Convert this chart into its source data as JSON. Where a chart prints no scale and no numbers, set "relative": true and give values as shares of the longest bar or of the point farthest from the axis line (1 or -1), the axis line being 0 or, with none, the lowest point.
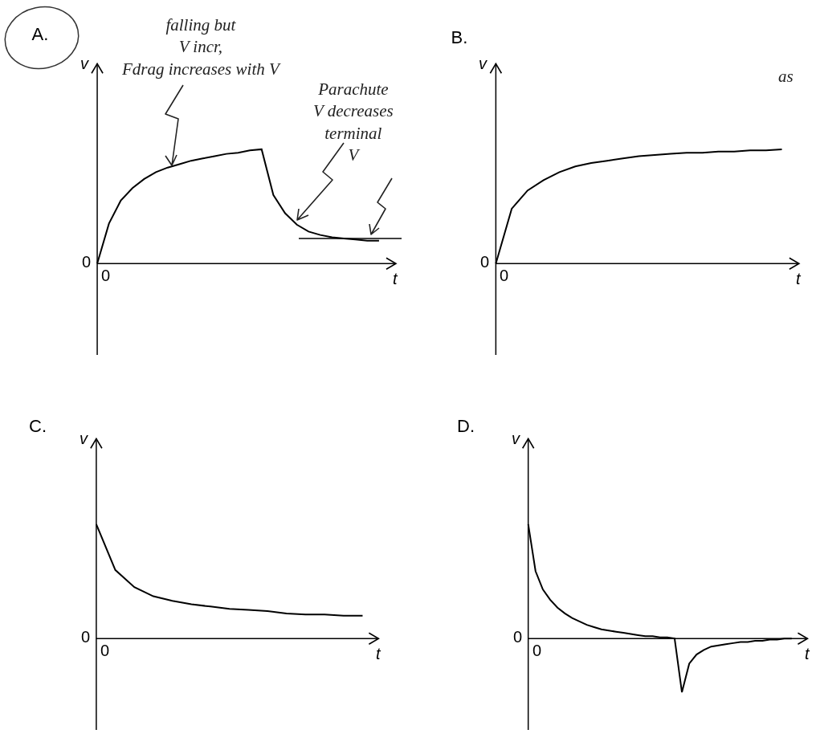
{
  "chart_data": [
    {
      "type": "line",
      "title": "A.",
      "xlabel": "t",
      "ylabel": "v",
      "relative": true,
      "categories": [
        null,
        null,
        null,
        null,
        null,
        null,
        null,
        null,
        null,
        null,
        null,
        null,
        null,
        null,
        null,
        null,
        null,
        null,
        null,
        null,
        null,
        null,
        null,
        null,
        null
      ],
      "color": "#000000",
      "values": [
        0,
        0.35,
        0.55,
        0.66,
        0.74,
        0.8,
        0.84,
        0.87,
        0.9,
        0.92,
        0.94,
        0.96,
        0.97,
        0.99,
        1.0,
        0.6,
        0.44,
        0.34,
        0.28,
        0.25,
        0.23,
        0.22,
        0.21,
        0.2,
        0.2
      ],
      "ref_lines": [
        {
          "axis": "y",
          "value": 0.22,
          "color": "#000000"
        }
      ],
      "annotations": [
        "0",
        "0",
        "falling but\nV incr,\nFdrag increases with V",
        "Parachute\nV decreases\nterminal\nV"
      ]
    },
    {
      "type": "line",
      "title": "B.",
      "xlabel": "t",
      "ylabel": "v",
      "relative": true,
      "categories": [
        null,
        null,
        null,
        null,
        null,
        null,
        null,
        null,
        null,
        null,
        null,
        null,
        null,
        null,
        null,
        null,
        null,
        null,
        null
      ],
      "color": "#000000",
      "values": [
        0,
        0.48,
        0.64,
        0.73,
        0.8,
        0.85,
        0.88,
        0.9,
        0.92,
        0.94,
        0.95,
        0.96,
        0.97,
        0.97,
        0.98,
        0.98,
        0.99,
        0.99,
        1.0
      ],
      "annotations": [
        "0",
        "0",
        "as"
      ]
    },
    {
      "type": "line",
      "title": "C.",
      "xlabel": "t",
      "ylabel": "v",
      "relative": true,
      "categories": [
        null,
        null,
        null,
        null,
        null,
        null,
        null,
        null,
        null,
        null,
        null,
        null,
        null,
        null,
        null
      ],
      "color": "#000000",
      "values": [
        1.0,
        0.6,
        0.45,
        0.37,
        0.33,
        0.3,
        0.28,
        0.26,
        0.25,
        0.24,
        0.22,
        0.21,
        0.21,
        0.2,
        0.2
      ],
      "annotations": [
        "0",
        "0"
      ]
    },
    {
      "type": "line",
      "title": "D.",
      "xlabel": "t",
      "ylabel": "v",
      "relative": true,
      "categories": [
        null,
        null,
        null,
        null,
        null,
        null,
        null,
        null,
        null,
        null,
        null,
        null,
        null,
        null,
        null,
        null,
        null,
        null,
        null,
        null,
        null,
        null,
        null,
        null,
        null,
        null,
        null,
        null,
        null,
        null,
        null,
        null,
        null,
        null,
        null,
        null,
        null
      ],
      "color": "#000000",
      "values": [
        1.0,
        0.59,
        0.43,
        0.34,
        0.27,
        0.22,
        0.18,
        0.15,
        0.12,
        0.1,
        0.08,
        0.07,
        0.06,
        0.05,
        0.04,
        0.03,
        0.02,
        0.02,
        0.01,
        0.01,
        0,
        -0.47,
        -0.22,
        -0.14,
        -0.1,
        -0.07,
        -0.06,
        -0.05,
        -0.04,
        -0.03,
        -0.03,
        -0.02,
        -0.02,
        -0.01,
        -0.01,
        0,
        0
      ],
      "annotations": [
        "0",
        "0"
      ]
    }
  ]
}
